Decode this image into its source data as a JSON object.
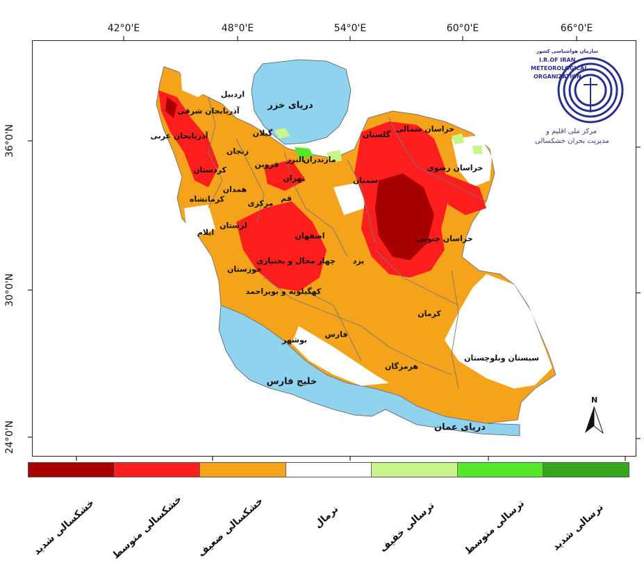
{
  "map": {
    "top_ticks": [
      "42°0'E",
      "48°0'E",
      "54°0'E",
      "60°0'E",
      "66°0'E"
    ],
    "left_ticks": [
      "36°0'N",
      "30°0'N",
      "24°0'N"
    ],
    "water": {
      "caspian": "دریای خزر",
      "persian_gulf": "خلیج فارس",
      "oman_sea": "دریای عمان"
    },
    "provinces": [
      "اردبیل",
      "آذربایجان شرقی",
      "آذربایجان غربی",
      "زنجان",
      "گیلان",
      "کردستان",
      "قزوین",
      "البرز",
      "مازندران",
      "گلستان",
      "خراسان شمالی",
      "خراسان رضوی",
      "تهران",
      "سمنان",
      "همدان",
      "کرمانشاه",
      "مرکزی",
      "قم",
      "لرستان",
      "ایلام",
      "اصفهان",
      "خراسان جنوبی",
      "چهار محال و بختیاری",
      "یزد",
      "خوزستان",
      "کهگیلویه و بویراحمد",
      "کرمان",
      "بوشهر",
      "فارس",
      "سیستان وبلوچستان",
      "هرمزگان"
    ],
    "north_label": "N",
    "colors": {
      "water": "#8fd3ee",
      "severe_drought": "#a80000",
      "moderate_drought": "#ff1e1e",
      "weak_drought": "#f5a31a",
      "normal": "#ffffff",
      "light_wet": "#c9f58a",
      "moderate_wet": "#55e82a",
      "severe_wet": "#38a61c"
    }
  },
  "logo": {
    "org_fa_top": "سازمان هواشناسی کشور",
    "org_en_1": "I.R.OF IRAN",
    "org_en_2": "METEOROLOGICAL",
    "org_en_3": "ORGANIZATION",
    "center_fa_1": "مرکز ملی اقلیم و",
    "center_fa_2": "مدیریت بحران خشکسالی"
  },
  "legend": [
    {
      "label": "خشکسالی شدید",
      "color": "#a80000"
    },
    {
      "label": "خشکسالی متوسط",
      "color": "#ff1e1e"
    },
    {
      "label": "خشکسالی ضعیف",
      "color": "#f5a31a"
    },
    {
      "label": "نرمال",
      "color": "#ffffff"
    },
    {
      "label": "ترسالی خفیف",
      "color": "#c9f58a"
    },
    {
      "label": "ترسالی متوسط",
      "color": "#55e82a"
    },
    {
      "label": "ترسالی شدید",
      "color": "#38a61c"
    }
  ]
}
